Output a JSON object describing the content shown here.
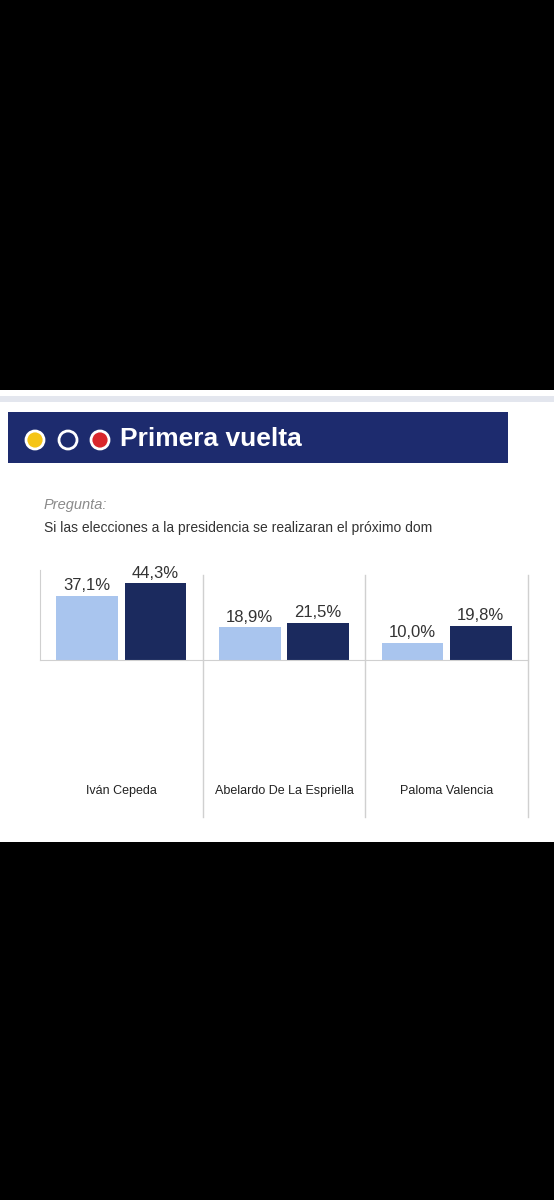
{
  "chart_data": {
    "type": "bar",
    "title": "Primera vuelta",
    "subtitle": "Pregunta:",
    "annotations": [
      "Si las elecciones a la presidencia se realizaran el próximo dom"
    ],
    "categories": [
      "Iván Cepeda",
      "Abelardo De La Espriella",
      "Paloma Valencia"
    ],
    "series": [
      {
        "color": "#a9c5ee",
        "values": [
          37.1,
          18.9,
          10.0
        ],
        "value_labels": [
          "37,1%",
          "18,9%",
          "10,0%"
        ]
      },
      {
        "color": "#1b2a5e",
        "values": [
          44.3,
          21.5,
          19.8
        ],
        "value_labels": [
          "44,3%",
          "21,5%",
          "19,8%"
        ]
      }
    ],
    "ylim": [
      0,
      52
    ],
    "yticks": [],
    "data_labels": true,
    "tick_labels": "x",
    "grid": false
  }
}
